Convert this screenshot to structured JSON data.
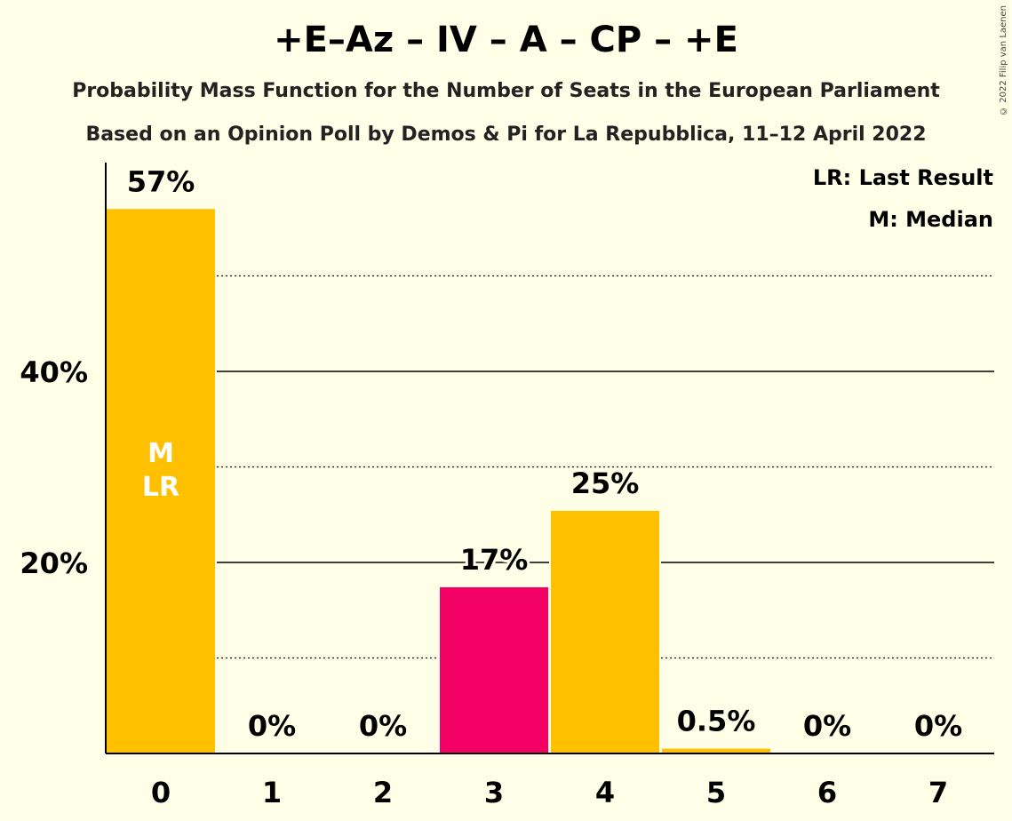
{
  "title": "+E–Az – IV – A – CP – +E",
  "subtitle_1": "Probability Mass Function for the Number of Seats in the European Parliament",
  "subtitle_2": "Based on an Opinion Poll by Demos & Pi for La Repubblica, 11–12 April 2022",
  "copyright": "© 2022 Filip van Laenen",
  "legend": {
    "last_result": "LR: Last Result",
    "median": "M: Median"
  },
  "colors": {
    "background": "#FFFEE6",
    "bar_default": "#FFC000",
    "bar_highlight": "#F20063"
  },
  "chart_data": {
    "type": "bar",
    "categories": [
      "0",
      "1",
      "2",
      "3",
      "4",
      "5",
      "6",
      "7"
    ],
    "values": [
      57,
      0,
      0,
      17.4,
      25.4,
      0.5,
      0,
      0
    ],
    "data_labels": [
      "57%",
      "0%",
      "0%",
      "17%",
      "25%",
      "0.5%",
      "0%",
      "0%"
    ],
    "highlight_index": 3,
    "median_index": 0,
    "last_result_index": 0,
    "median_marker": "M",
    "last_result_marker": "LR",
    "ylim": [
      0,
      62
    ],
    "y_ticks": [
      20,
      40
    ],
    "y_tick_labels": [
      "20%",
      "40%"
    ],
    "y_minor_gridlines": [
      10,
      30,
      50
    ],
    "grid": true
  }
}
